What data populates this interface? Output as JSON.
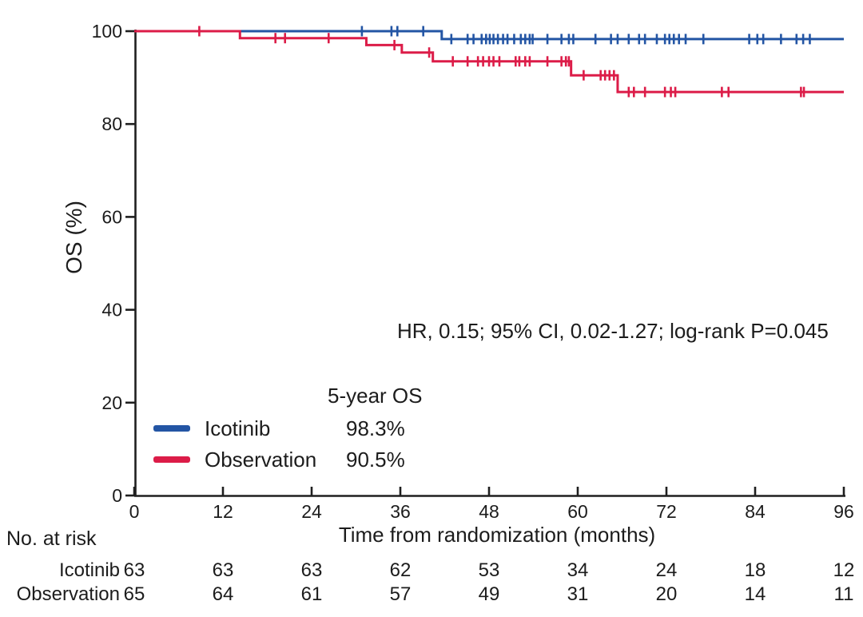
{
  "figure": {
    "annotation": "HR, 0.15; 95% CI, 0.02-1.27; log-rank P=0.045",
    "legend": {
      "header": "5-year OS",
      "rows": [
        {
          "name": "Icotinib",
          "value": "98.3%",
          "color": "#2355a4"
        },
        {
          "name": "Observation",
          "value": "90.5%",
          "color": "#dc1c48"
        }
      ]
    },
    "risk_table": {
      "title": "No. at risk",
      "rows": [
        {
          "name": "Icotinib",
          "counts": [
            63,
            63,
            63,
            62,
            53,
            34,
            24,
            18,
            12
          ]
        },
        {
          "name": "Observation",
          "counts": [
            65,
            64,
            61,
            57,
            49,
            31,
            20,
            14,
            11
          ]
        }
      ]
    }
  },
  "chart_data": {
    "type": "line",
    "subtype": "kaplan_meier_step",
    "title": "",
    "xlabel": "Time from randomization (months)",
    "ylabel": "OS (%)",
    "xlim": [
      0,
      96
    ],
    "ylim": [
      0,
      100
    ],
    "x_ticks": [
      0,
      12,
      24,
      36,
      48,
      60,
      72,
      84,
      96
    ],
    "y_ticks": [
      0,
      20,
      40,
      60,
      80,
      100
    ],
    "grid": false,
    "legend_position": "inside-lower-left",
    "axis_color": "#1f1f1f",
    "annotation": "HR, 0.15; 95% CI, 0.02-1.27; log-rank P=0.045",
    "five_year_os": {
      "Icotinib": "98.3%",
      "Observation": "90.5%"
    },
    "series": [
      {
        "name": "Icotinib",
        "color": "#2355a4",
        "step_points": [
          [
            0,
            100
          ],
          [
            41.6,
            98.3
          ]
        ],
        "end_x": 96,
        "censors": [
          [
            30.8,
            100
          ],
          [
            34.8,
            100
          ],
          [
            35.6,
            100
          ],
          [
            39.1,
            100
          ],
          [
            42.9,
            98.3
          ],
          [
            45.1,
            98.3
          ],
          [
            45.9,
            98.3
          ],
          [
            47.0,
            98.3
          ],
          [
            47.6,
            98.3
          ],
          [
            48.1,
            98.3
          ],
          [
            48.6,
            98.3
          ],
          [
            49.2,
            98.3
          ],
          [
            49.9,
            98.3
          ],
          [
            50.5,
            98.3
          ],
          [
            51.4,
            98.3
          ],
          [
            52.3,
            98.3
          ],
          [
            52.9,
            98.3
          ],
          [
            53.5,
            98.3
          ],
          [
            53.9,
            98.3
          ],
          [
            55.9,
            98.3
          ],
          [
            57.8,
            98.3
          ],
          [
            58.8,
            98.3
          ],
          [
            59.4,
            98.3
          ],
          [
            62.4,
            98.3
          ],
          [
            64.5,
            98.3
          ],
          [
            65.4,
            98.3
          ],
          [
            66.9,
            98.3
          ],
          [
            68.3,
            98.3
          ],
          [
            69.1,
            98.3
          ],
          [
            70.7,
            98.3
          ],
          [
            71.8,
            98.3
          ],
          [
            72.4,
            98.3
          ],
          [
            73.0,
            98.3
          ],
          [
            73.7,
            98.3
          ],
          [
            74.6,
            98.3
          ],
          [
            77.0,
            98.3
          ],
          [
            83.2,
            98.3
          ],
          [
            84.3,
            98.3
          ],
          [
            85.1,
            98.3
          ],
          [
            87.5,
            98.3
          ],
          [
            89.6,
            98.3
          ],
          [
            90.5,
            98.3
          ],
          [
            91.4,
            98.3
          ]
        ]
      },
      {
        "name": "Observation",
        "color": "#dc1c48",
        "step_points": [
          [
            0,
            100
          ],
          [
            14.3,
            98.5
          ],
          [
            31.4,
            97.0
          ],
          [
            36.2,
            95.4
          ],
          [
            40.4,
            93.5
          ],
          [
            59.1,
            90.5
          ],
          [
            65.4,
            86.9
          ]
        ],
        "end_x": 96,
        "censors": [
          [
            8.8,
            100
          ],
          [
            19.1,
            98.5
          ],
          [
            20.4,
            98.5
          ],
          [
            26.3,
            98.5
          ],
          [
            35.2,
            97.0
          ],
          [
            39.9,
            95.4
          ],
          [
            43.1,
            93.5
          ],
          [
            45.1,
            93.5
          ],
          [
            46.5,
            93.5
          ],
          [
            47.2,
            93.5
          ],
          [
            48.0,
            93.5
          ],
          [
            48.6,
            93.5
          ],
          [
            49.4,
            93.5
          ],
          [
            51.6,
            93.5
          ],
          [
            52.1,
            93.5
          ],
          [
            52.9,
            93.5
          ],
          [
            53.5,
            93.5
          ],
          [
            55.9,
            93.5
          ],
          [
            57.8,
            93.5
          ],
          [
            58.4,
            93.5
          ],
          [
            58.8,
            93.5
          ],
          [
            60.8,
            90.5
          ],
          [
            63.1,
            90.5
          ],
          [
            63.7,
            90.5
          ],
          [
            64.3,
            90.5
          ],
          [
            64.9,
            90.5
          ],
          [
            66.9,
            86.9
          ],
          [
            67.6,
            86.9
          ],
          [
            69.1,
            86.9
          ],
          [
            71.8,
            86.9
          ],
          [
            72.6,
            86.9
          ],
          [
            73.2,
            86.9
          ],
          [
            79.5,
            86.9
          ],
          [
            80.4,
            86.9
          ],
          [
            90.2,
            86.9
          ],
          [
            90.6,
            86.9
          ]
        ]
      }
    ]
  }
}
